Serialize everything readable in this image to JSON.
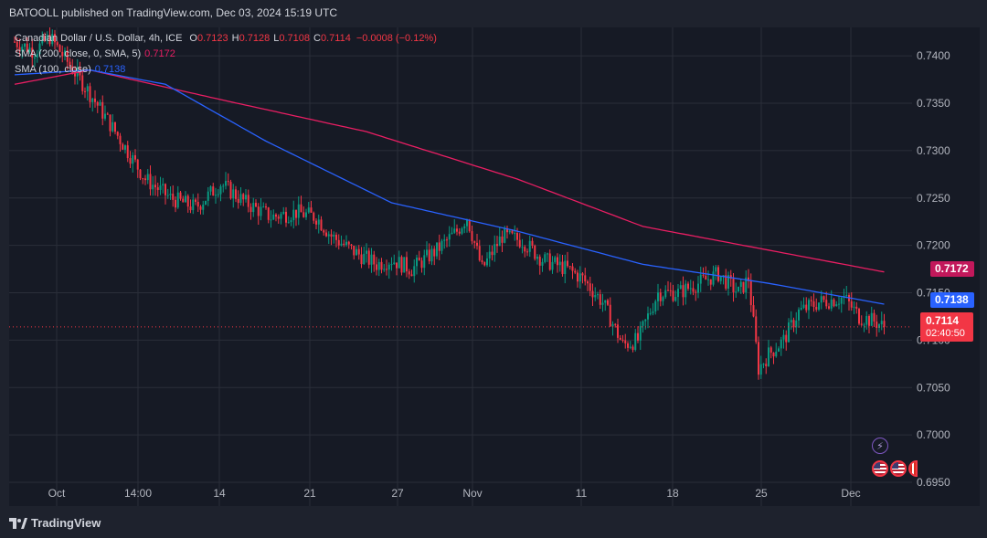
{
  "header": {
    "published": "BATOOLL published on TradingView.com, Dec 03, 2024 15:19 UTC"
  },
  "legend": {
    "symbol": "Canadian Dollar / U.S. Dollar, 4h, ICE",
    "o_label": "O",
    "o_value": "0.7123",
    "h_label": "H",
    "h_value": "0.7128",
    "l_label": "L",
    "l_value": "0.7108",
    "c_label": "C",
    "c_value": "0.7114",
    "change": "−0.0008 (−0.12%)",
    "sma200_label": "SMA (200, close, 0, SMA, 5)",
    "sma200_value": "0.7172",
    "sma100_label": "SMA (100, close)",
    "sma100_value": "0.7138"
  },
  "tags": {
    "sma200": "0.7172",
    "sma100": "0.7138",
    "price": "0.7114",
    "countdown": "02:40:50"
  },
  "footer": {
    "brand": "TradingView"
  },
  "colors": {
    "up": "#089981",
    "down": "#f23645",
    "sma200": "#e91e63",
    "sma100": "#2962ff",
    "grid": "#2a2e39",
    "background": "#161a25"
  },
  "icons": [
    "lightning-event-icon",
    "us-flag-icon",
    "ca-flag-icon"
  ],
  "chart_data": {
    "type": "candlestick",
    "symbol": "CADUSD",
    "interval": "4h",
    "ylim": [
      0.6925,
      0.743
    ],
    "y_ticks": [
      "0.7400",
      "0.7350",
      "0.7300",
      "0.7250",
      "0.7200",
      "0.7150",
      "0.7100",
      "0.7050",
      "0.7000",
      "0.6950"
    ],
    "x_ticks": [
      "Oct",
      "14:00",
      "14",
      "21",
      "27",
      "Nov",
      "11",
      "18",
      "25",
      "Dec"
    ],
    "grid": true,
    "last_price": 0.7114,
    "path_anchors": [
      [
        0,
        0.7415
      ],
      [
        8,
        0.7405
      ],
      [
        14,
        0.742
      ],
      [
        22,
        0.739
      ],
      [
        30,
        0.736
      ],
      [
        40,
        0.732
      ],
      [
        52,
        0.727
      ],
      [
        62,
        0.725
      ],
      [
        72,
        0.724
      ],
      [
        82,
        0.7265
      ],
      [
        92,
        0.7245
      ],
      [
        102,
        0.723
      ],
      [
        112,
        0.7235
      ],
      [
        120,
        0.723
      ],
      [
        126,
        0.721
      ],
      [
        134,
        0.7195
      ],
      [
        144,
        0.718
      ],
      [
        150,
        0.7185
      ],
      [
        158,
        0.7175
      ],
      [
        168,
        0.7195
      ],
      [
        176,
        0.7215
      ],
      [
        180,
        0.723
      ],
      [
        186,
        0.7175
      ],
      [
        194,
        0.721
      ],
      [
        202,
        0.7205
      ],
      [
        210,
        0.7185
      ],
      [
        220,
        0.7175
      ],
      [
        226,
        0.7165
      ],
      [
        234,
        0.714
      ],
      [
        242,
        0.7095
      ],
      [
        248,
        0.71
      ],
      [
        256,
        0.715
      ],
      [
        264,
        0.715
      ],
      [
        272,
        0.716
      ],
      [
        280,
        0.717
      ],
      [
        288,
        0.715
      ],
      [
        292,
        0.7165
      ],
      [
        296,
        0.707
      ],
      [
        300,
        0.7085
      ],
      [
        306,
        0.71
      ],
      [
        312,
        0.713
      ],
      [
        320,
        0.714
      ],
      [
        330,
        0.7145
      ],
      [
        336,
        0.7125
      ],
      [
        342,
        0.712
      ],
      [
        346,
        0.7114
      ]
    ],
    "sma200": [
      [
        0,
        0.737
      ],
      [
        30,
        0.7385
      ],
      [
        80,
        0.7355
      ],
      [
        140,
        0.732
      ],
      [
        200,
        0.727
      ],
      [
        250,
        0.722
      ],
      [
        300,
        0.7195
      ],
      [
        346,
        0.7172
      ]
    ],
    "sma100": [
      [
        0,
        0.738
      ],
      [
        30,
        0.7385
      ],
      [
        60,
        0.737
      ],
      [
        100,
        0.731
      ],
      [
        150,
        0.7245
      ],
      [
        200,
        0.7215
      ],
      [
        250,
        0.718
      ],
      [
        300,
        0.716
      ],
      [
        346,
        0.7138
      ]
    ]
  }
}
